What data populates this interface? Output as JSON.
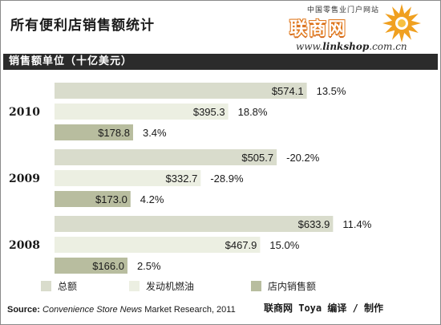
{
  "header": {
    "title": "所有便利店销售额统计",
    "logo_tagline": "中国零售业门户网站",
    "logo_name": "联商网",
    "logo_url_bold": "linkshop",
    "logo_url_prefix": "www.",
    "logo_url_suffix": ".com.cn",
    "unit_label": "销售额单位（十亿美元）"
  },
  "colors": {
    "series_total": "#d9dccc",
    "series_fuel": "#ecefe2",
    "series_instore": "#b8bd9f",
    "unit_bar": "#2b2b2b"
  },
  "chart_data": {
    "type": "bar",
    "orientation": "horizontal",
    "categories": [
      "2010",
      "2009",
      "2008"
    ],
    "series": [
      {
        "name": "总额",
        "values": [
          574.1,
          505.7,
          633.9
        ],
        "value_labels": [
          "$574.1",
          "$505.7",
          "$633.9"
        ],
        "change_labels": [
          "13.5%",
          "-20.2%",
          "11.4%"
        ]
      },
      {
        "name": "发动机燃油",
        "values": [
          395.3,
          332.7,
          467.9
        ],
        "value_labels": [
          "$395.3",
          "$332.7",
          "$467.9"
        ],
        "change_labels": [
          "18.8%",
          "-28.9%",
          "15.0%"
        ]
      },
      {
        "name": "店内销售额",
        "values": [
          178.8,
          173.0,
          166.0
        ],
        "value_labels": [
          "$178.8",
          "$173.0",
          "$166.0"
        ],
        "change_labels": [
          "3.4%",
          "4.2%",
          "2.5%"
        ]
      }
    ],
    "xlim": [
      0,
      650
    ],
    "grid": false,
    "legend_placement": "bottom"
  },
  "footer": {
    "source_prefix": "Source: ",
    "source_italic": "Convenience Store News",
    "source_suffix": " Market Research, 2011",
    "credit": "联商网 Toya 编译 / 制作"
  }
}
